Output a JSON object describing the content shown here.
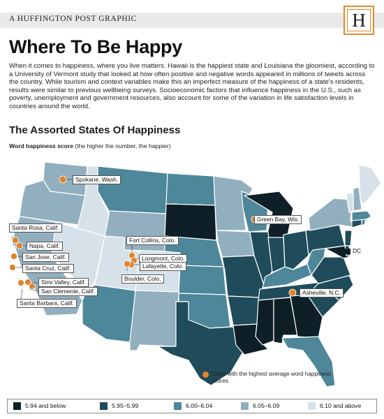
{
  "header": {
    "brand": "A HUFFINGTON POST GRAPHIC",
    "logo_letter": "H"
  },
  "title": "Where To Be Happy",
  "intro": "When it comes to happiness, where you live matters. Hawaii is the happiest state and Louisiana the gloomiest, according to a University of Vermont study that looked at how often positive and negative words appeared in millions of tweets across the country. While tourism and context variables make this an imperfect measure of the happiness of a state's residents, results were similar to previous wellbeing surveys. Socioeconomic factors that influence happiness in the U.S., such as poverty, unemployment and government resources, also account for some of the variation in life satisfaction levels in countries around the world.",
  "map": {
    "subtitle": "The Assorted States Of Happiness",
    "score_label_bold": "Word happiness score",
    "score_label_rest": " (the higher the number, the happier)",
    "dc_label": "DC",
    "cities_note": "Cities with the highest average word happiness scores",
    "colors": {
      "tier1": "#0e1f27",
      "tier2": "#1f4b5a",
      "tier3": "#4d8799",
      "tier4": "#92afbf",
      "tier5": "#d6e1e9",
      "accent": "#e0832d"
    },
    "cities": [
      {
        "name": "Spokane, Wash."
      },
      {
        "name": "Santa Rosa, Calif."
      },
      {
        "name": "Napa, Calif."
      },
      {
        "name": "San Jose, Calif."
      },
      {
        "name": "Santa Cruz, Calif."
      },
      {
        "name": "Simi Valley, Calif."
      },
      {
        "name": "San Clemente, Calif."
      },
      {
        "name": "Santa Barbara, Calif."
      },
      {
        "name": "Fort Collins, Colo."
      },
      {
        "name": "Longmont, Colo."
      },
      {
        "name": "Lafayette, Colo."
      },
      {
        "name": "Boulder, Colo."
      },
      {
        "name": "Green Bay, Wis."
      },
      {
        "name": "Asheville, N.C."
      }
    ]
  },
  "legend": [
    {
      "label": "5.94 and below",
      "color": "#0e1f27"
    },
    {
      "label": "5.95–5.99",
      "color": "#1f4b5a"
    },
    {
      "label": "6.00–6.04",
      "color": "#4d8799"
    },
    {
      "label": "6.05–6.09",
      "color": "#92afbf"
    },
    {
      "label": "6.10 and above",
      "color": "#d6e1e9"
    }
  ]
}
